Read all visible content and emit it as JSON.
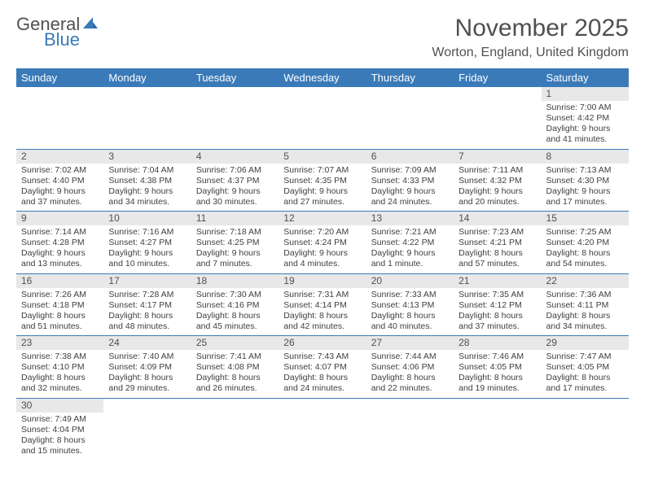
{
  "brand": {
    "part1": "General",
    "part2": "Blue",
    "sail_color": "#3a7ab8"
  },
  "title": "November 2025",
  "location": "Worton, England, United Kingdom",
  "header_bg": "#3a7ab8",
  "daynum_bg": "#e8e8e8",
  "columns": [
    "Sunday",
    "Monday",
    "Tuesday",
    "Wednesday",
    "Thursday",
    "Friday",
    "Saturday"
  ],
  "weeks": [
    [
      null,
      null,
      null,
      null,
      null,
      null,
      {
        "n": "1",
        "sr": "7:00 AM",
        "ss": "4:42 PM",
        "dl": "9 hours and 41 minutes."
      }
    ],
    [
      {
        "n": "2",
        "sr": "7:02 AM",
        "ss": "4:40 PM",
        "dl": "9 hours and 37 minutes."
      },
      {
        "n": "3",
        "sr": "7:04 AM",
        "ss": "4:38 PM",
        "dl": "9 hours and 34 minutes."
      },
      {
        "n": "4",
        "sr": "7:06 AM",
        "ss": "4:37 PM",
        "dl": "9 hours and 30 minutes."
      },
      {
        "n": "5",
        "sr": "7:07 AM",
        "ss": "4:35 PM",
        "dl": "9 hours and 27 minutes."
      },
      {
        "n": "6",
        "sr": "7:09 AM",
        "ss": "4:33 PM",
        "dl": "9 hours and 24 minutes."
      },
      {
        "n": "7",
        "sr": "7:11 AM",
        "ss": "4:32 PM",
        "dl": "9 hours and 20 minutes."
      },
      {
        "n": "8",
        "sr": "7:13 AM",
        "ss": "4:30 PM",
        "dl": "9 hours and 17 minutes."
      }
    ],
    [
      {
        "n": "9",
        "sr": "7:14 AM",
        "ss": "4:28 PM",
        "dl": "9 hours and 13 minutes."
      },
      {
        "n": "10",
        "sr": "7:16 AM",
        "ss": "4:27 PM",
        "dl": "9 hours and 10 minutes."
      },
      {
        "n": "11",
        "sr": "7:18 AM",
        "ss": "4:25 PM",
        "dl": "9 hours and 7 minutes."
      },
      {
        "n": "12",
        "sr": "7:20 AM",
        "ss": "4:24 PM",
        "dl": "9 hours and 4 minutes."
      },
      {
        "n": "13",
        "sr": "7:21 AM",
        "ss": "4:22 PM",
        "dl": "9 hours and 1 minute."
      },
      {
        "n": "14",
        "sr": "7:23 AM",
        "ss": "4:21 PM",
        "dl": "8 hours and 57 minutes."
      },
      {
        "n": "15",
        "sr": "7:25 AM",
        "ss": "4:20 PM",
        "dl": "8 hours and 54 minutes."
      }
    ],
    [
      {
        "n": "16",
        "sr": "7:26 AM",
        "ss": "4:18 PM",
        "dl": "8 hours and 51 minutes."
      },
      {
        "n": "17",
        "sr": "7:28 AM",
        "ss": "4:17 PM",
        "dl": "8 hours and 48 minutes."
      },
      {
        "n": "18",
        "sr": "7:30 AM",
        "ss": "4:16 PM",
        "dl": "8 hours and 45 minutes."
      },
      {
        "n": "19",
        "sr": "7:31 AM",
        "ss": "4:14 PM",
        "dl": "8 hours and 42 minutes."
      },
      {
        "n": "20",
        "sr": "7:33 AM",
        "ss": "4:13 PM",
        "dl": "8 hours and 40 minutes."
      },
      {
        "n": "21",
        "sr": "7:35 AM",
        "ss": "4:12 PM",
        "dl": "8 hours and 37 minutes."
      },
      {
        "n": "22",
        "sr": "7:36 AM",
        "ss": "4:11 PM",
        "dl": "8 hours and 34 minutes."
      }
    ],
    [
      {
        "n": "23",
        "sr": "7:38 AM",
        "ss": "4:10 PM",
        "dl": "8 hours and 32 minutes."
      },
      {
        "n": "24",
        "sr": "7:40 AM",
        "ss": "4:09 PM",
        "dl": "8 hours and 29 minutes."
      },
      {
        "n": "25",
        "sr": "7:41 AM",
        "ss": "4:08 PM",
        "dl": "8 hours and 26 minutes."
      },
      {
        "n": "26",
        "sr": "7:43 AM",
        "ss": "4:07 PM",
        "dl": "8 hours and 24 minutes."
      },
      {
        "n": "27",
        "sr": "7:44 AM",
        "ss": "4:06 PM",
        "dl": "8 hours and 22 minutes."
      },
      {
        "n": "28",
        "sr": "7:46 AM",
        "ss": "4:05 PM",
        "dl": "8 hours and 19 minutes."
      },
      {
        "n": "29",
        "sr": "7:47 AM",
        "ss": "4:05 PM",
        "dl": "8 hours and 17 minutes."
      }
    ],
    [
      {
        "n": "30",
        "sr": "7:49 AM",
        "ss": "4:04 PM",
        "dl": "8 hours and 15 minutes."
      },
      null,
      null,
      null,
      null,
      null,
      null
    ]
  ],
  "labels": {
    "sunrise": "Sunrise:",
    "sunset": "Sunset:",
    "daylight": "Daylight:"
  }
}
